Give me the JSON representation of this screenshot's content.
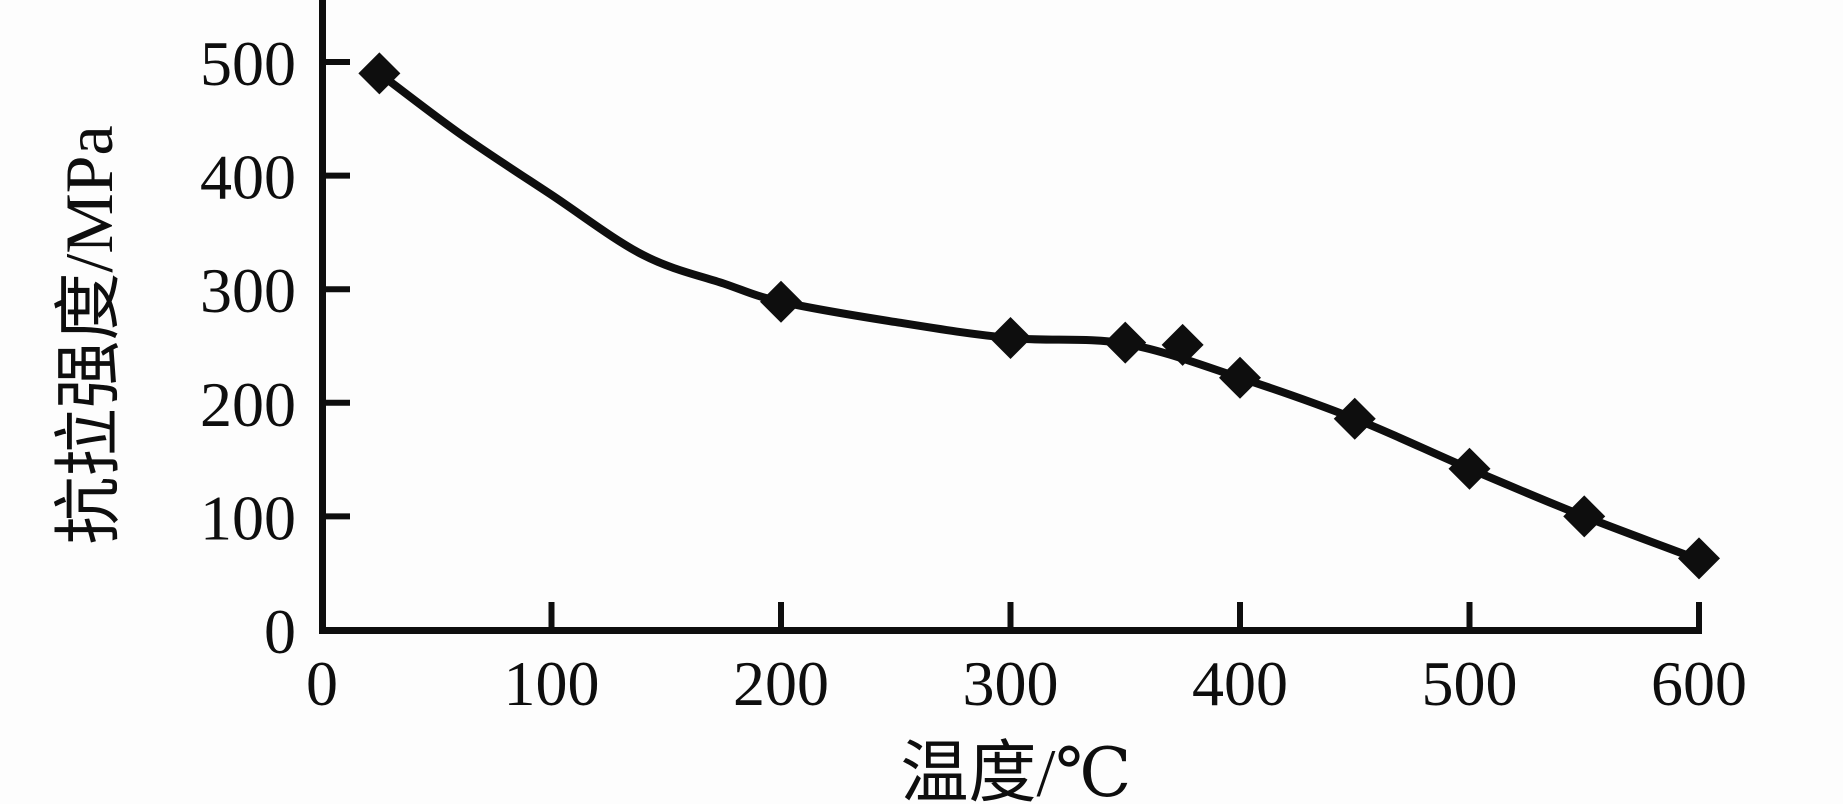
{
  "figure": {
    "background": "#fdfdfd",
    "ink_color": "#0e0e0e"
  },
  "chart_data": {
    "type": "line",
    "title": "",
    "xlabel": "温度/℃",
    "ylabel": "抗拉强度/MPa",
    "xlim": [
      0,
      600
    ],
    "ylim": [
      0,
      500
    ],
    "x_ticks": [
      0,
      100,
      200,
      300,
      400,
      500,
      600
    ],
    "y_ticks": [
      0,
      100,
      200,
      300,
      400,
      500
    ],
    "grid": false,
    "legend_position": "none",
    "marker": "diamond",
    "series": [
      {
        "name": "抗拉强度",
        "x": [
          25,
          200,
          300,
          350,
          375,
          400,
          450,
          500,
          550,
          600
        ],
        "y": [
          490,
          289,
          257,
          253,
          251,
          222,
          186,
          142,
          100,
          63
        ]
      }
    ],
    "trend_curve": [
      [
        25,
        490
      ],
      [
        60,
        437
      ],
      [
        100,
        383
      ],
      [
        140,
        330
      ],
      [
        175,
        305
      ],
      [
        200,
        289
      ],
      [
        250,
        271
      ],
      [
        300,
        257
      ],
      [
        350,
        252
      ],
      [
        400,
        222
      ],
      [
        450,
        186
      ],
      [
        500,
        142
      ],
      [
        550,
        100
      ],
      [
        600,
        62
      ]
    ]
  }
}
